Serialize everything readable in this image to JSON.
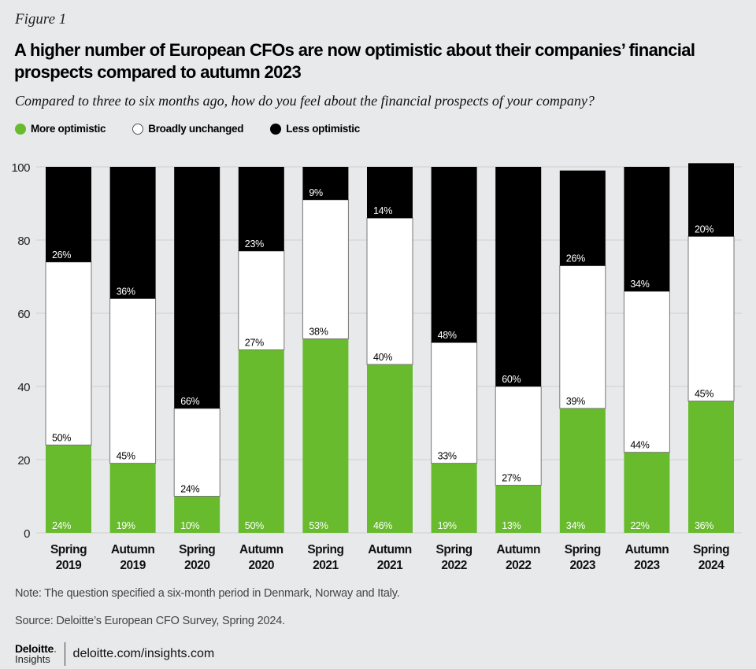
{
  "figure_label": "Figure 1",
  "title": "A higher number of European CFOs are now optimistic about their companies’ financial prospects compared to autumn 2023",
  "subtitle": "Compared to three to six months ago, how do you feel about the financial prospects of your company?",
  "legend": [
    {
      "label": "More optimistic",
      "color": "#67bb2c"
    },
    {
      "label": "Broadly unchanged",
      "color": "#ffffff"
    },
    {
      "label": "Less optimistic",
      "color": "#000000"
    }
  ],
  "chart_data": {
    "type": "bar",
    "stacked": true,
    "title": "A higher number of European CFOs are now optimistic about their companies’ financial prospects compared to autumn 2023",
    "xlabel": "",
    "ylabel": "",
    "ylim": [
      0,
      100
    ],
    "yticks": [
      0,
      20,
      40,
      60,
      80,
      100
    ],
    "grid": true,
    "legend_position": "top-left",
    "categories": [
      [
        "Spring",
        "2019"
      ],
      [
        "Autumn",
        "2019"
      ],
      [
        "Spring",
        "2020"
      ],
      [
        "Autumn",
        "2020"
      ],
      [
        "Spring",
        "2021"
      ],
      [
        "Autumn",
        "2021"
      ],
      [
        "Spring",
        "2022"
      ],
      [
        "Autumn",
        "2022"
      ],
      [
        "Spring",
        "2023"
      ],
      [
        "Autumn",
        "2023"
      ],
      [
        "Spring",
        "2024"
      ]
    ],
    "series": [
      {
        "name": "More optimistic",
        "color": "#67bb2c",
        "label_color": "#ffffff",
        "values": [
          24,
          19,
          10,
          50,
          53,
          46,
          19,
          13,
          34,
          22,
          36
        ]
      },
      {
        "name": "Broadly unchanged",
        "color": "#ffffff",
        "label_color": "#000000",
        "values": [
          50,
          45,
          24,
          27,
          38,
          40,
          33,
          27,
          39,
          44,
          45
        ]
      },
      {
        "name": "Less optimistic",
        "color": "#000000",
        "label_color": "#ffffff",
        "values": [
          26,
          36,
          66,
          23,
          9,
          14,
          48,
          60,
          26,
          34,
          20
        ]
      }
    ]
  },
  "note": "Note: The question specified a six-month period in Denmark, Norway and Italy.",
  "source": "Source: Deloitte’s European CFO Survey, Spring 2024.",
  "footer": {
    "brand": "Deloitte",
    "brand_dot": ".",
    "brand_sub": "Insights",
    "url": "deloitte.com/insights.com"
  }
}
